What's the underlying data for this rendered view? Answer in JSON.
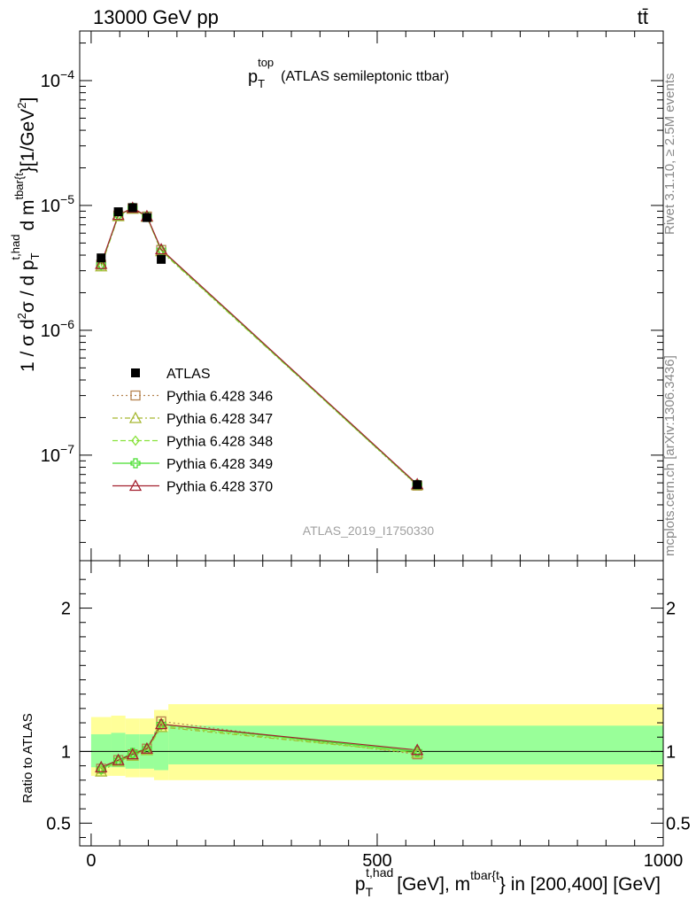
{
  "header": {
    "left": "13000 GeV pp",
    "right": "tt̄"
  },
  "side_labels": {
    "top": "Rivet 3.1.10, ≥ 2.5M events",
    "bottom": "mcplots.cern.ch [arXiv:1306.3436]"
  },
  "chart_data": [
    {
      "type": "line",
      "panel": "main",
      "title_main": "p",
      "title_sub": "T",
      "title_sup": "top",
      "title_rest": "(ATLAS semileptonic ttbar)",
      "watermark": "ATLAS_2019_I1750330",
      "ylabel": "1 / σ d²σ / d p_T^{t,had} d m^{tbar{t}} [1/GeV²]",
      "yscale": "log",
      "ylim": [
        1.5e-08,
        0.00023
      ],
      "xlim": [
        -20,
        1000
      ],
      "ytick_labels": [
        {
          "base": "10",
          "exp": "−4",
          "value": 0.0001
        },
        {
          "base": "10",
          "exp": "−5",
          "value": 1e-05
        },
        {
          "base": "10",
          "exp": "−6",
          "value": 1e-06
        },
        {
          "base": "10",
          "exp": "−7",
          "value": 1e-07
        }
      ],
      "data": {
        "name": "ATLAS",
        "x": [
          17.5,
          47.5,
          72.5,
          97.5,
          122.5,
          570
        ],
        "y": [
          3.8e-06,
          8.9e-06,
          9.6e-06,
          8e-06,
          3.7e-06,
          5.8e-08
        ]
      },
      "series": [
        {
          "name": "Pythia 6.428 346",
          "color": "#b5834f",
          "marker": "square-open",
          "dash": "2,3",
          "x": [
            17.5,
            47.5,
            72.5,
            97.5,
            122.5,
            570
          ],
          "y": [
            3.35e-06,
            8.3e-06,
            9.5e-06,
            8.15e-06,
            4.4e-06,
            5.7e-08
          ]
        },
        {
          "name": "Pythia 6.428 347",
          "color": "#a6b832",
          "marker": "triangle-open",
          "dash": "6,3,2,3",
          "x": [
            17.5,
            47.5,
            72.5,
            97.5,
            122.5,
            570
          ],
          "y": [
            3.25e-06,
            8.2e-06,
            9.4e-06,
            8.1e-06,
            4.3e-06,
            5.75e-08
          ]
        },
        {
          "name": "Pythia 6.428 348",
          "color": "#88e23a",
          "marker": "diamond-open",
          "dash": "6,3",
          "x": [
            17.5,
            47.5,
            72.5,
            97.5,
            122.5,
            570
          ],
          "y": [
            3.3e-06,
            8.3e-06,
            9.5e-06,
            8.1e-06,
            4.35e-06,
            5.75e-08
          ]
        },
        {
          "name": "Pythia 6.428 349",
          "color": "#44dd2a",
          "marker": "cross-open",
          "dash": "",
          "x": [
            17.5,
            47.5,
            72.5,
            97.5,
            122.5,
            570
          ],
          "y": [
            3.35e-06,
            8.35e-06,
            9.55e-06,
            8.15e-06,
            4.4e-06,
            5.8e-08
          ]
        },
        {
          "name": "Pythia 6.428 370",
          "color": "#a3202f",
          "marker": "triangle-open",
          "dash": "",
          "x": [
            17.5,
            47.5,
            72.5,
            97.5,
            122.5,
            570
          ],
          "y": [
            3.4e-06,
            8.4e-06,
            9.55e-06,
            8.2e-06,
            4.45e-06,
            5.85e-08
          ]
        }
      ]
    },
    {
      "type": "line",
      "panel": "ratio",
      "ylabel": "Ratio to ATLAS",
      "xlabel": "p_T^{t,had} [GeV], m^{tbar{t}} in [200,400] [GeV]",
      "xlim": [
        -20,
        1000
      ],
      "ylim": [
        0.36,
        2.3
      ],
      "xtick_labels": [
        {
          "label": "0",
          "value": 0
        },
        {
          "label": "500",
          "value": 500
        },
        {
          "label": "1000",
          "value": 1000
        }
      ],
      "ytick_labels": [
        {
          "label": "0.5",
          "value": 0.5
        },
        {
          "label": "1",
          "value": 1
        },
        {
          "label": "2",
          "value": 2
        }
      ],
      "bands": {
        "bins": [
          [
            0,
            35
          ],
          [
            35,
            60
          ],
          [
            60,
            85
          ],
          [
            85,
            110
          ],
          [
            110,
            135
          ],
          [
            135,
            1000
          ]
        ],
        "stat": [
          [
            0.89,
            1.12
          ],
          [
            0.89,
            1.13
          ],
          [
            0.88,
            1.12
          ],
          [
            0.88,
            1.12
          ],
          [
            0.87,
            1.14
          ],
          [
            0.91,
            1.18
          ]
        ],
        "total": [
          [
            0.83,
            1.24
          ],
          [
            0.83,
            1.25
          ],
          [
            0.82,
            1.23
          ],
          [
            0.82,
            1.23
          ],
          [
            0.8,
            1.29
          ],
          [
            0.8,
            1.33
          ]
        ]
      },
      "series": [
        {
          "name": "Pythia 6.428 346",
          "x": [
            17.5,
            47.5,
            72.5,
            97.5,
            122.5,
            570
          ],
          "y": [
            0.88,
            0.94,
            0.98,
            1.02,
            1.21,
            0.98
          ]
        },
        {
          "name": "Pythia 6.428 347",
          "x": [
            17.5,
            47.5,
            72.5,
            97.5,
            122.5,
            570
          ],
          "y": [
            0.86,
            0.93,
            0.97,
            1.01,
            1.17,
            0.99
          ]
        },
        {
          "name": "Pythia 6.428 348",
          "x": [
            17.5,
            47.5,
            72.5,
            97.5,
            122.5,
            570
          ],
          "y": [
            0.87,
            0.93,
            0.98,
            1.01,
            1.18,
            0.99
          ]
        },
        {
          "name": "Pythia 6.428 349",
          "x": [
            17.5,
            47.5,
            72.5,
            97.5,
            122.5,
            570
          ],
          "y": [
            0.88,
            0.94,
            0.99,
            1.02,
            1.19,
            1.0
          ]
        },
        {
          "name": "Pythia 6.428 370",
          "x": [
            17.5,
            47.5,
            72.5,
            97.5,
            122.5,
            570
          ],
          "y": [
            0.89,
            0.94,
            0.98,
            1.02,
            1.19,
            1.01
          ]
        }
      ]
    }
  ]
}
